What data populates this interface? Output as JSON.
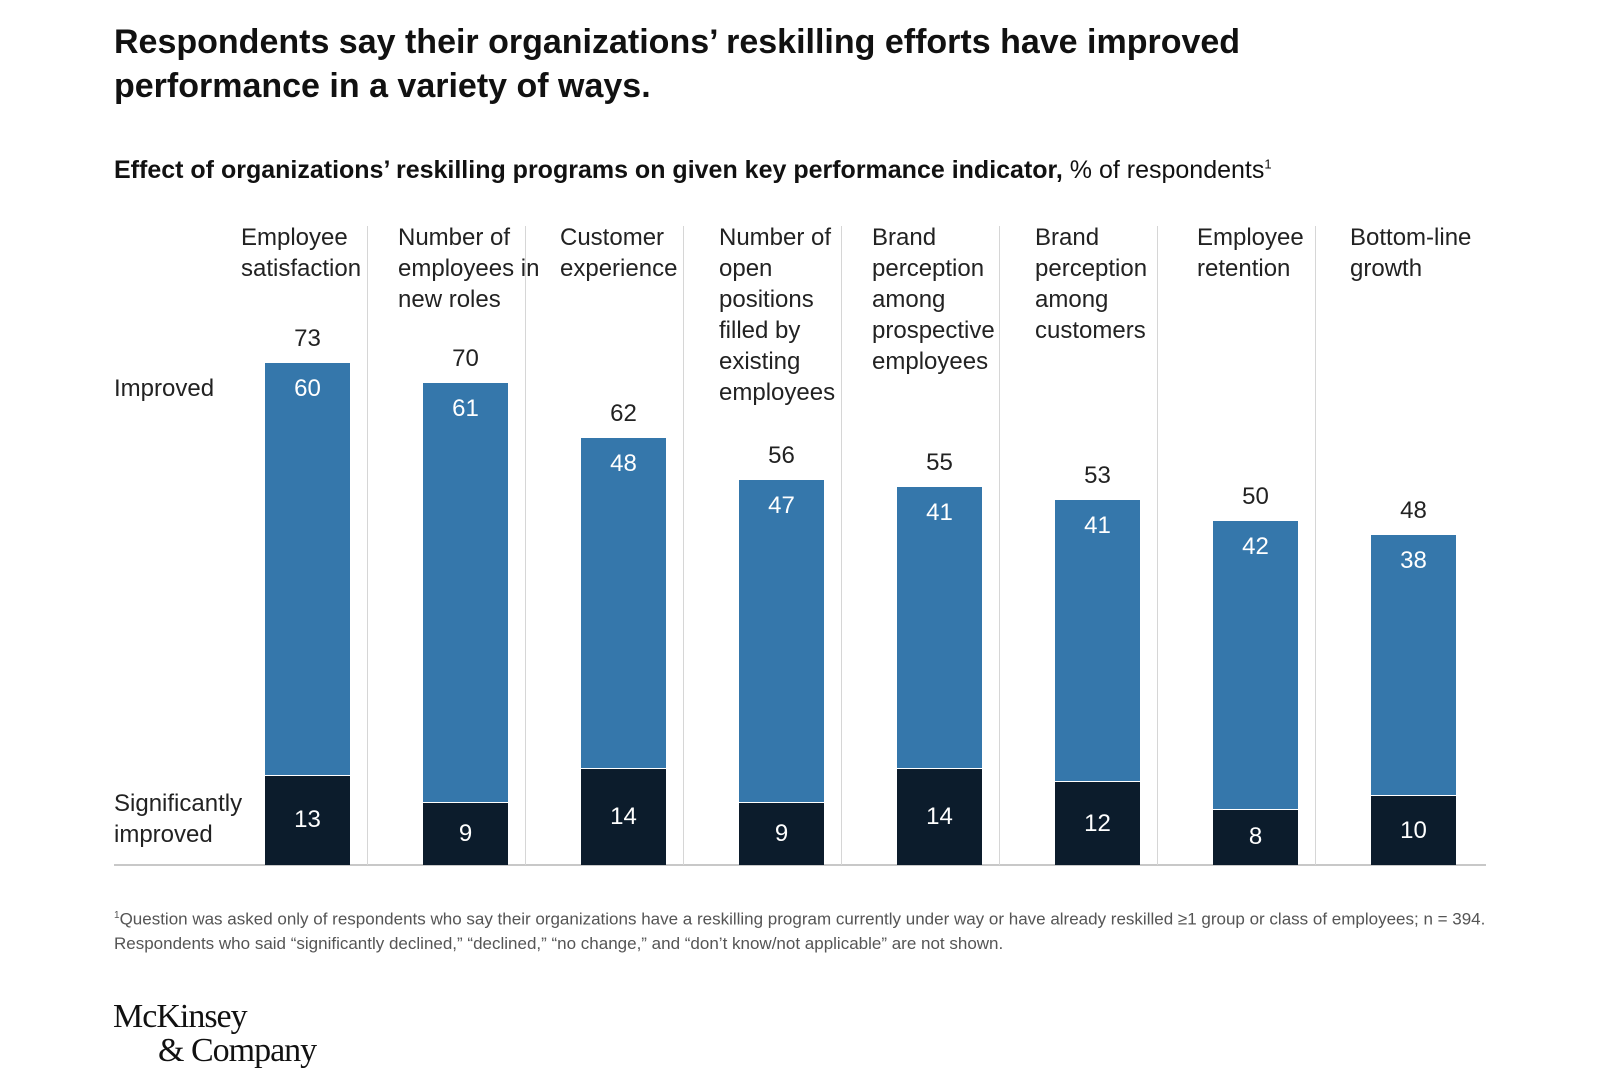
{
  "title": "Respondents say their organizations’ reskilling efforts have improved performance in a variety of ways.",
  "subtitle_bold": "Effect of organizations’ reskilling programs on given key performance indicator,",
  "subtitle_rest": " % of respondents",
  "subtitle_sup": "1",
  "footnote_sup": "1",
  "footnote": "Question was asked only of respondents who say their organizations have a reskilling program currently under way or have already reskilled ≥1 group or class of employees; n = 394. Respondents who said “significantly declined,” “declined,” “no change,” and “don’t know/not applicable” are not shown.",
  "logo": "McKinsey & Company",
  "logo_line1": "McKinsey",
  "logo_line2": "& Company",
  "colors": {
    "improved": "#3577ab",
    "significantly_improved": "#0c1c2c"
  },
  "chart_data": {
    "type": "bar",
    "stacked": true,
    "categories": [
      "Employee satisfaction",
      "Number of employees in new roles",
      "Customer experience",
      "Number of open positions filled by existing employees",
      "Brand perception among prospective employees",
      "Brand perception among customers",
      "Employee retention",
      "Bottom-line growth"
    ],
    "series": [
      {
        "name": "Significantly improved",
        "values": [
          13,
          9,
          14,
          9,
          14,
          12,
          8,
          10
        ]
      },
      {
        "name": "Improved",
        "values": [
          60,
          61,
          48,
          47,
          41,
          41,
          42,
          38
        ]
      }
    ],
    "totals": [
      73,
      70,
      62,
      56,
      55,
      53,
      50,
      48
    ],
    "row_labels": [
      "Improved",
      "Significantly improved"
    ]
  }
}
